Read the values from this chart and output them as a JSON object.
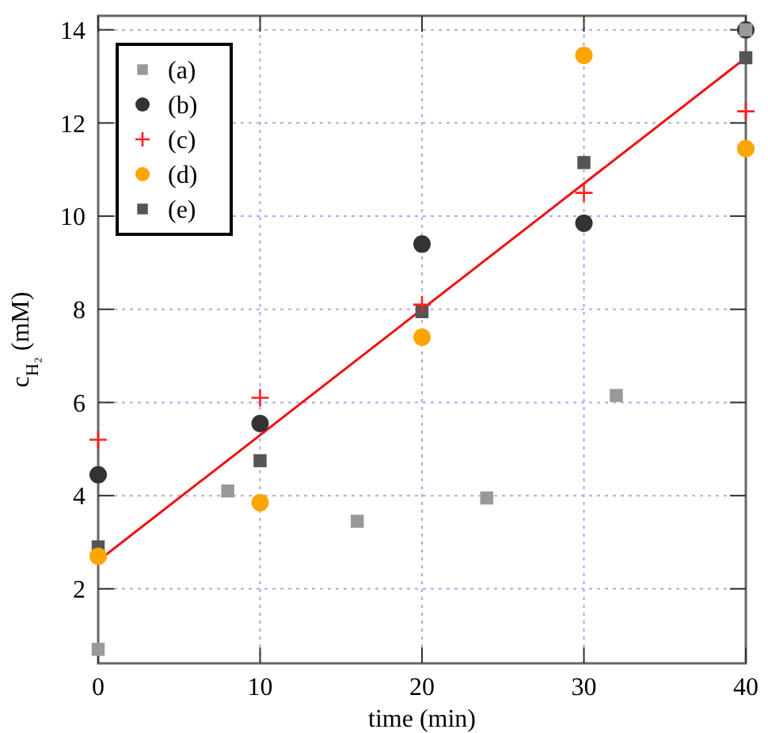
{
  "chart_data": {
    "type": "scatter",
    "xlabel": "time (min)",
    "ylabel": "c$_{H₂}$ (mM)",
    "xlim": [
      0,
      40
    ],
    "xticks": [
      0,
      10,
      20,
      30,
      40
    ],
    "ylim": [
      0.4,
      14.3
    ],
    "yticks": [
      2,
      4,
      6,
      8,
      10,
      12,
      14
    ],
    "grid": true,
    "legend": "top left",
    "series": [
      {
        "name": "(a)",
        "color": "#999999",
        "marker": "square",
        "x": [
          0,
          8,
          16,
          24,
          32,
          40
        ],
        "values": [
          0.7,
          4.1,
          3.45,
          3.95,
          6.15,
          14
        ]
      },
      {
        "name": "(b)",
        "color": "#333333",
        "marker": "circle",
        "x": [
          0,
          10,
          20,
          30,
          40
        ],
        "values": [
          4.45,
          5.55,
          9.4,
          9.85,
          14
        ]
      },
      {
        "name": "(c)",
        "color": "#ff2020",
        "marker": "cross",
        "x": [
          0,
          10,
          20,
          30,
          40
        ],
        "values": [
          5.2,
          6.1,
          8.1,
          10.5,
          12.25
        ]
      },
      {
        "name": "(d)",
        "color": "#ffa500",
        "marker": "circle",
        "x": [
          0,
          10,
          20,
          30,
          40
        ],
        "values": [
          2.7,
          3.85,
          7.4,
          13.45,
          11.45
        ]
      },
      {
        "name": "(e)",
        "color": "#555555",
        "marker": "square",
        "x": [
          0,
          10,
          20,
          30,
          40
        ],
        "values": [
          2.9,
          4.75,
          7.95,
          11.15,
          13.4
        ]
      },
      {
        "type": "line",
        "color": "#ee1111",
        "marker": "none",
        "x": [
          0,
          40
        ],
        "values": [
          2.6,
          13.4
        ]
      }
    ]
  }
}
